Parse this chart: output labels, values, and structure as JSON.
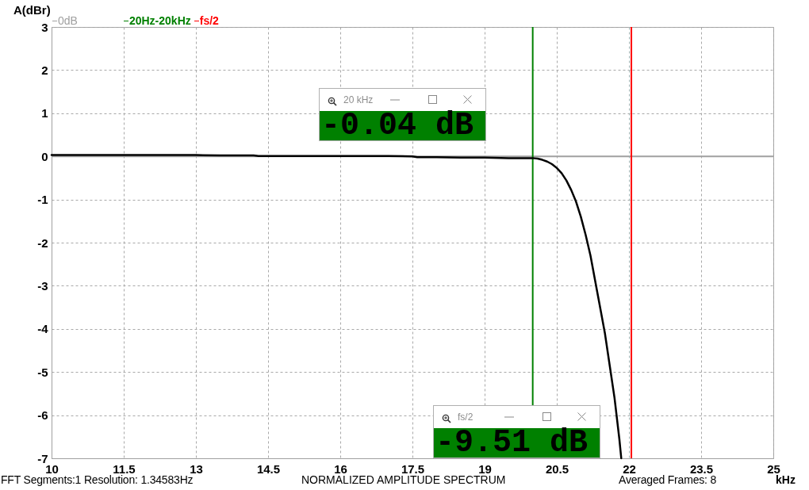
{
  "chart_data": {
    "type": "line",
    "title": "NORMALIZED AMPLITUDE SPECTRUM",
    "xlabel": "kHz",
    "ylabel": "A(dBr)",
    "x": [
      10,
      10.5,
      11,
      11.5,
      12,
      12.5,
      13,
      13.5,
      14,
      14.2,
      14.3,
      15,
      15.5,
      16,
      16.5,
      17,
      17.5,
      17.6,
      18,
      18.5,
      19,
      19.5,
      20,
      20.1,
      20.2,
      20.3,
      20.4,
      20.5,
      20.6,
      20.7,
      20.8,
      20.9,
      21.0,
      21.1,
      21.2,
      21.3,
      21.4,
      21.5,
      21.6,
      21.7,
      21.8,
      21.84
    ],
    "series": [
      {
        "color": "#000000",
        "values": [
          0.03,
          0.03,
          0.03,
          0.03,
          0.03,
          0.03,
          0.03,
          0.02,
          0.02,
          0.02,
          0.01,
          0.01,
          0.01,
          0.01,
          0.01,
          0.01,
          0.0,
          -0.02,
          -0.02,
          -0.03,
          -0.03,
          -0.04,
          -0.04,
          -0.05,
          -0.08,
          -0.12,
          -0.18,
          -0.27,
          -0.39,
          -0.56,
          -0.78,
          -1.05,
          -1.4,
          -1.82,
          -2.3,
          -2.9,
          -3.5,
          -4.1,
          -4.85,
          -5.6,
          -6.55,
          -7.0
        ]
      }
    ],
    "xlim": [
      10,
      25
    ],
    "xticks": [
      10,
      11.5,
      13,
      14.5,
      16,
      17.5,
      19,
      20.5,
      22,
      23.5,
      25
    ],
    "ylim": [
      -7,
      3
    ],
    "yticks": [
      -7,
      -6,
      -5,
      -4,
      -3,
      -2,
      -1,
      0,
      1,
      2,
      3
    ],
    "grid": true,
    "line_style": "solid",
    "ref_lines": [
      {
        "axis": "y",
        "value": 0,
        "label": "0dB",
        "color": "#a0a0a0"
      },
      {
        "axis": "x",
        "value": 20,
        "label": "20Hz-20kHz",
        "color": "#008000"
      },
      {
        "axis": "x",
        "value": 22.05,
        "label": "fs/2",
        "color": "#ff0000"
      }
    ],
    "annotations": [
      "20 kHz",
      "-0.04 dB",
      "fs/2",
      "-9.51 dB",
      "FFT Segments:1  Resolution: 1.34583Hz",
      "Averaged Frames: 8"
    ]
  }
}
